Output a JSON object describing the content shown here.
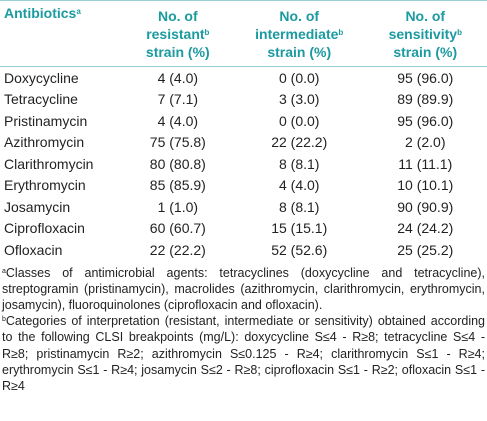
{
  "table": {
    "header": [
      {
        "lines": [
          "Antibiotics"
        ],
        "sup": "a",
        "tail": null
      },
      {
        "lines": [
          "No. of",
          "resistant"
        ],
        "sup": "b",
        "tail": "strain (%)"
      },
      {
        "lines": [
          "No. of",
          "intermediate"
        ],
        "sup": "b",
        "tail": "strain (%)"
      },
      {
        "lines": [
          "No. of",
          "sensitivity"
        ],
        "sup": "b",
        "tail": "strain (%)"
      }
    ],
    "rows": [
      [
        "Doxycycline",
        "4 (4.0)",
        "0 (0.0)",
        "95 (96.0)"
      ],
      [
        "Tetracycline",
        "7 (7.1)",
        "3 (3.0)",
        "89 (89.9)"
      ],
      [
        "Pristinamycin",
        "4 (4.0)",
        "0 (0.0)",
        "95 (96.0)"
      ],
      [
        "Azithromycin",
        "75 (75.8)",
        "22 (22.2)",
        "2 (2.0)"
      ],
      [
        "Clarithromycin",
        "80 (80.8)",
        "8 (8.1)",
        "11 (11.1)"
      ],
      [
        "Erythromycin",
        "85 (85.9)",
        "4 (4.0)",
        "10 (10.1)"
      ],
      [
        "Josamycin",
        "1 (1.0)",
        "8 (8.1)",
        "90 (90.9)"
      ],
      [
        "Ciprofloxacin",
        "60 (60.7)",
        "15 (15.1)",
        "24 (24.2)"
      ],
      [
        "Ofloxacin",
        "22 (22.2)",
        "52 (52.6)",
        "25 (25.2)"
      ]
    ]
  },
  "footnotes": [
    {
      "sup": "a",
      "text": "Classes of antimicrobial agents: tetracyclines (doxycycline and tetracycline), streptogramin (pristinamycin), macrolides (azithromycin, clarithromycin, erythromycin, josamycin), fluoroquinolones (ciprofloxacin and ofloxacin)."
    },
    {
      "sup": "b",
      "text": "Categories of interpretation (resistant, intermediate or sensitivity) obtained according to the following CLSI breakpoints (mg/L): doxycycline S≤4 - R≥8; tetracycline S≤4 - R≥8; pristinamycin R≥2; azithromycin S≤0.125 - R≥4; clarithromycin S≤1 - R≥4; erythromycin S≤1 - R≥4; josamycin S≤2 - R≥8; ciprofloxacin S≤1 - R≥2; ofloxacin S≤1 - R≥4"
    }
  ]
}
